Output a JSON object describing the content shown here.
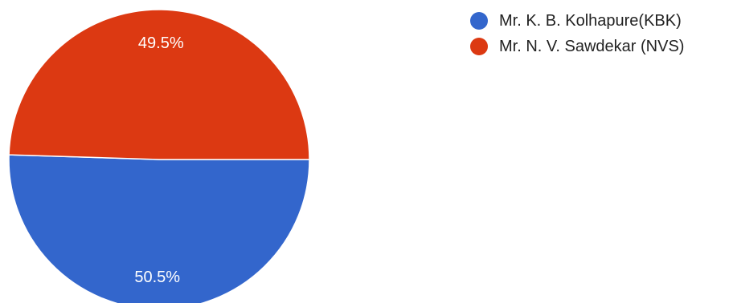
{
  "chart_data": {
    "type": "pie",
    "title": "",
    "slices": [
      {
        "label": "Mr. K. B. Kolhapure(KBK)",
        "value": 50.5,
        "display": "50.5%",
        "color": "#3366cc"
      },
      {
        "label": "Mr. N. V. Sawdekar (NVS)",
        "value": 49.5,
        "display": "49.5%",
        "color": "#dc3912"
      }
    ],
    "legend_position": "top-right",
    "label_color": "#ffffff"
  }
}
